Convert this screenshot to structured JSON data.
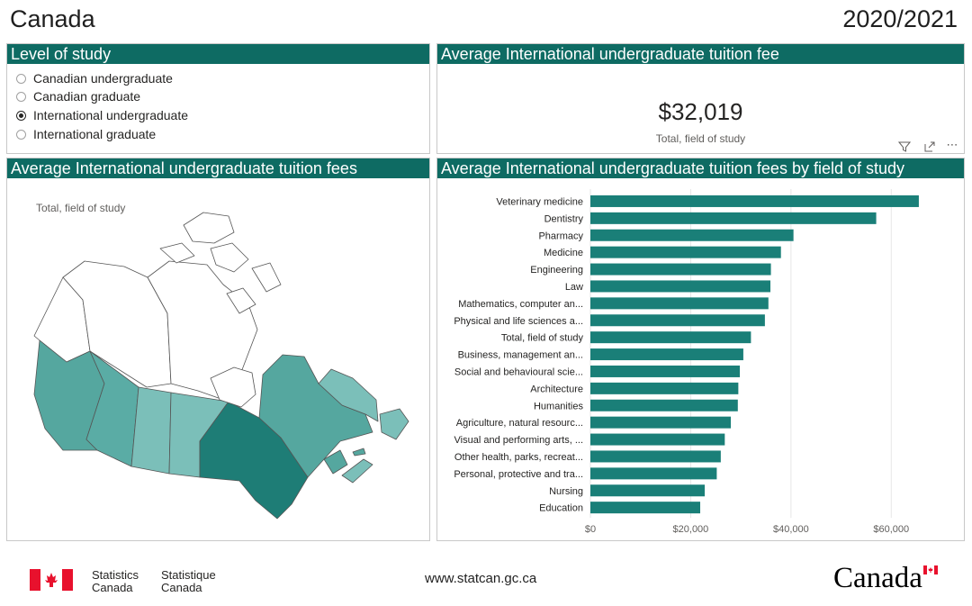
{
  "header": {
    "title": "Canada",
    "year": "2020/2021"
  },
  "level_panel": {
    "title": "Level of study",
    "options": [
      {
        "label": "Canadian undergraduate",
        "selected": false
      },
      {
        "label": "Canadian graduate",
        "selected": false
      },
      {
        "label": "International undergraduate",
        "selected": true
      },
      {
        "label": "International graduate",
        "selected": false
      }
    ]
  },
  "kpi_panel": {
    "title": "Average International undergraduate tuition fee",
    "value": "$32,019",
    "label": "Total, field of study",
    "icons": [
      "filter-icon",
      "focus-mode-icon",
      "more-options-icon"
    ]
  },
  "map_panel": {
    "title": "Average International undergraduate tuition fees",
    "label": "Total, field of study"
  },
  "bar_panel": {
    "title": "Average International undergraduate tuition fees by field of study"
  },
  "chart_data": {
    "type": "bar",
    "orientation": "horizontal",
    "title": "Average International undergraduate tuition fees by field of study",
    "categories": [
      "Veterinary medicine",
      "Dentistry",
      "Pharmacy",
      "Medicine",
      "Engineering",
      "Law",
      "Mathematics, computer an...",
      "Physical and life sciences a...",
      "Total, field of study",
      "Business, management an...",
      "Social and behavioural scie...",
      "Architecture",
      "Humanities",
      "Agriculture, natural resourc...",
      "Visual and performing arts, ...",
      "Other health, parks, recreat...",
      "Personal, protective and tra...",
      "Nursing",
      "Education"
    ],
    "values": [
      65500,
      57000,
      40500,
      38000,
      36000,
      35900,
      35500,
      34800,
      32019,
      30500,
      29800,
      29500,
      29400,
      28000,
      26800,
      26000,
      25200,
      22800,
      21900
    ],
    "xlim": [
      0,
      70000
    ],
    "ticks": [
      0,
      20000,
      40000,
      60000
    ],
    "tick_labels": [
      "$0",
      "$20,000",
      "$40,000",
      "$60,000"
    ],
    "bar_color": "#1a7f78"
  },
  "colors": {
    "header_bg": "#0e6b63",
    "bar": "#1a7f78"
  },
  "footer": {
    "statistics_en": "Statistics",
    "canada_en": "Canada",
    "statistique_fr": "Statistique",
    "canada_fr": "Canada",
    "url": "www.statcan.gc.ca",
    "wordmark": "Canada"
  }
}
